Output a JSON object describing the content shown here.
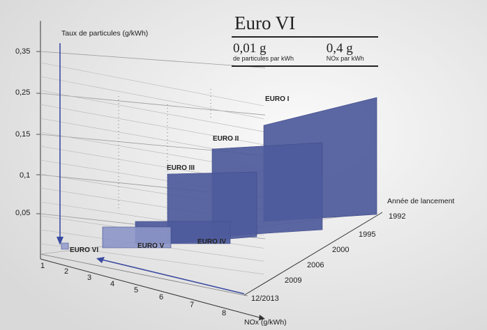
{
  "infobox": {
    "title": "Euro VI",
    "particulate_value": "0,01 g",
    "particulate_unit": "de particules par kWh",
    "nox_value": "0,4 g",
    "nox_unit": "NOx par kWh"
  },
  "chart_data": {
    "type": "bar",
    "style": "3d-stepped-panels",
    "title": "Euro VI",
    "y_axis_label": "Taux de particules (g/kWh)",
    "x_axis_label": "NOx (g/kWh)",
    "z_axis_label": "Année de lancement",
    "y_ticks": [
      "0,35",
      "0,25",
      "0,15",
      "0,1",
      "0,05"
    ],
    "y_tick_values": [
      0.35,
      0.25,
      0.15,
      0.1,
      0.05
    ],
    "x_ticks": [
      "1",
      "2",
      "3",
      "4",
      "5",
      "6",
      "7",
      "8"
    ],
    "z_ticks": [
      "1992",
      "1995",
      "2000",
      "2006",
      "2009",
      "12/2013"
    ],
    "ylim": [
      0,
      0.37
    ],
    "grid": true,
    "colors": {
      "panel_fill": "#4d5a9b",
      "panel_edge": "#3d4888",
      "panel_light": "#9ea6cf",
      "arrow": "#3a4aa0",
      "gridline": "#9a9a9a"
    },
    "series": [
      {
        "name": "EURO I",
        "year": "1992",
        "nox": 8,
        "particulates": 0.36
      },
      {
        "name": "EURO II",
        "year": "1995",
        "nox": 7,
        "particulates": 0.25
      },
      {
        "name": "EURO III",
        "year": "2000",
        "nox": 5,
        "particulates": 0.1
      },
      {
        "name": "EURO IV",
        "year": "2006",
        "nox": 3.5,
        "particulates": 0.02
      },
      {
        "name": "EURO V",
        "year": "2009",
        "nox": 2,
        "particulates": 0.02
      },
      {
        "name": "EURO VI",
        "year": "12/2013",
        "nox": 0.4,
        "particulates": 0.01
      }
    ],
    "annotations": [
      {
        "text": "0,01 g",
        "detail": "de particules par kWh"
      },
      {
        "text": "0,4 g",
        "detail": "NOx par kWh"
      }
    ]
  }
}
